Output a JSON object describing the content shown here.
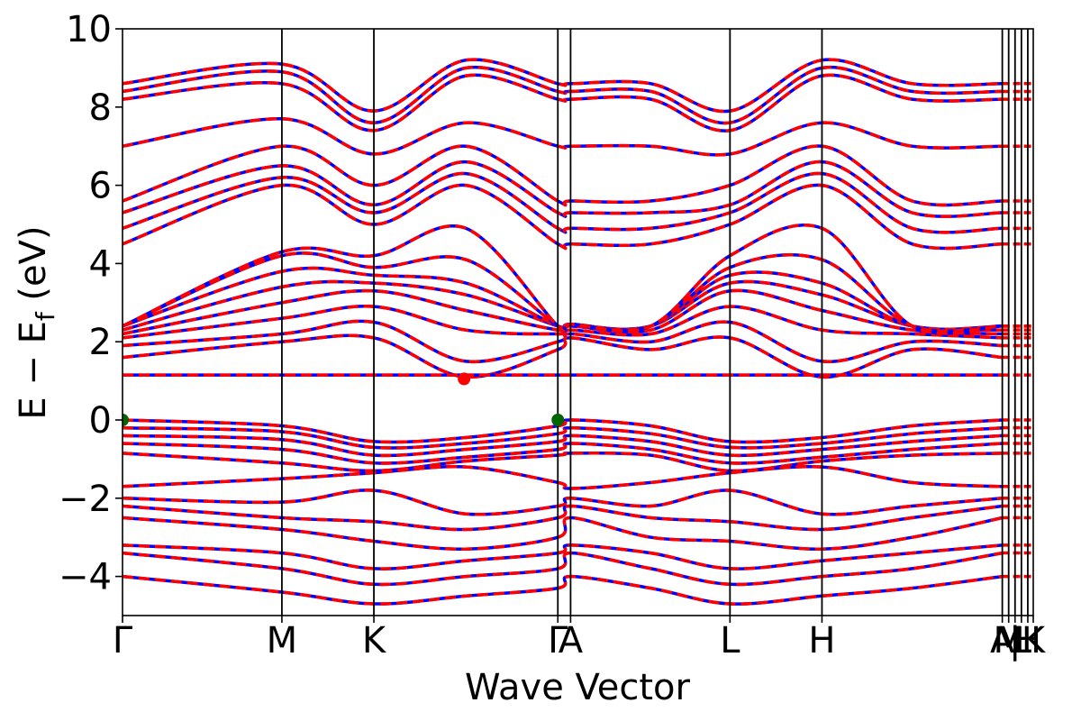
{
  "chart_data": {
    "type": "line",
    "title": "",
    "xlabel": "Wave Vector",
    "ylabel": "E − E",
    "ylabel_subscript": "f",
    "ylabel_unit": " (eV)",
    "ylim": [
      -5,
      10
    ],
    "y_ticks": [
      {
        "value": 10,
        "label": "10"
      },
      {
        "value": 8,
        "label": "8"
      },
      {
        "value": 6,
        "label": "6"
      },
      {
        "value": 4,
        "label": "4"
      },
      {
        "value": 2,
        "label": "2"
      },
      {
        "value": 0,
        "label": "0"
      },
      {
        "value": -2,
        "label": "−2"
      },
      {
        "value": -4,
        "label": "−4"
      }
    ],
    "xlim": [
      0,
      1
    ],
    "kpoints": [
      {
        "label": "Γ",
        "x": 0.0
      },
      {
        "label": "M",
        "x": 0.175
      },
      {
        "label": "K",
        "x": 0.276
      },
      {
        "label": "Γ",
        "x": 0.478
      },
      {
        "label": "A",
        "x": 0.492
      },
      {
        "label": "L",
        "x": 0.667
      },
      {
        "label": "H",
        "x": 0.768
      },
      {
        "label": "A",
        "x": 0.966
      },
      {
        "label": "M",
        "x": 0.973
      },
      {
        "label": "|",
        "x": 0.98
      },
      {
        "label": "L",
        "x": 0.987
      },
      {
        "label": "H",
        "x": 0.994
      },
      {
        "label": "K",
        "x": 1.0
      }
    ],
    "grid": false,
    "series": [
      {
        "style": "solid",
        "color": "#0000ff"
      },
      {
        "style": "dashed",
        "color": "#ff0000"
      }
    ],
    "markers": [
      {
        "x": 0.0,
        "y": 0.0,
        "color": "#006400"
      },
      {
        "x": 0.478,
        "y": 0.0,
        "color": "#006400"
      },
      {
        "x": 0.375,
        "y": 1.05,
        "color": "#ff0000"
      }
    ],
    "valence_bands": [
      [
        0.0,
        -0.15,
        -0.55,
        -0.45,
        -0.15,
        0.0,
        -0.15,
        -0.55,
        -0.45,
        -0.15,
        0.0
      ],
      [
        -0.2,
        -0.3,
        -0.7,
        -0.6,
        -0.35,
        -0.2,
        -0.35,
        -0.7,
        -0.6,
        -0.35,
        -0.2
      ],
      [
        -0.4,
        -0.5,
        -0.9,
        -0.75,
        -0.55,
        -0.4,
        -0.55,
        -0.9,
        -0.75,
        -0.55,
        -0.4
      ],
      [
        -0.6,
        -0.75,
        -1.1,
        -0.95,
        -0.75,
        -0.6,
        -0.75,
        -1.1,
        -0.95,
        -0.75,
        -0.6
      ],
      [
        -0.85,
        -1.1,
        -1.3,
        -1.05,
        -0.9,
        -0.85,
        -0.9,
        -1.3,
        -1.05,
        -0.9,
        -0.85
      ],
      [
        -1.7,
        -1.5,
        -1.35,
        -1.2,
        -1.6,
        -1.75,
        -1.6,
        -1.35,
        -1.2,
        -1.6,
        -1.7
      ],
      [
        -2.0,
        -2.1,
        -1.8,
        -2.4,
        -2.2,
        -2.0,
        -2.2,
        -1.8,
        -2.4,
        -2.2,
        -2.0
      ],
      [
        -2.2,
        -2.5,
        -2.6,
        -2.8,
        -2.5,
        -2.2,
        -2.5,
        -2.6,
        -2.8,
        -2.5,
        -2.2
      ],
      [
        -2.5,
        -2.8,
        -3.1,
        -3.3,
        -3.0,
        -2.5,
        -3.0,
        -3.1,
        -3.3,
        -3.0,
        -2.5
      ],
      [
        -3.2,
        -3.4,
        -3.8,
        -3.6,
        -3.4,
        -3.2,
        -3.4,
        -3.8,
        -3.6,
        -3.4,
        -3.2
      ],
      [
        -3.4,
        -3.8,
        -4.2,
        -4.0,
        -3.8,
        -3.4,
        -3.8,
        -4.2,
        -4.0,
        -3.8,
        -3.4
      ],
      [
        -4.0,
        -4.4,
        -4.7,
        -4.5,
        -4.3,
        -4.0,
        -4.3,
        -4.7,
        -4.5,
        -4.3,
        -4.0
      ]
    ],
    "flat_band": 1.15,
    "conduction_bands": [
      [
        1.6,
        2.0,
        2.1,
        1.1,
        1.8,
        2.1,
        1.8,
        2.1,
        1.1,
        1.8,
        1.6
      ],
      [
        1.9,
        2.2,
        2.5,
        1.5,
        2.0,
        2.2,
        2.0,
        2.5,
        1.5,
        2.0,
        1.9
      ],
      [
        2.1,
        2.6,
        2.9,
        2.3,
        2.2,
        2.3,
        2.2,
        2.9,
        2.3,
        2.2,
        2.1
      ],
      [
        2.2,
        3.0,
        3.3,
        2.8,
        2.3,
        2.4,
        2.3,
        3.3,
        2.8,
        2.3,
        2.2
      ],
      [
        2.3,
        3.4,
        3.5,
        3.2,
        2.4,
        2.4,
        2.4,
        3.5,
        3.2,
        2.4,
        2.3
      ],
      [
        2.4,
        3.8,
        3.7,
        3.5,
        2.4,
        2.45,
        2.4,
        3.7,
        3.5,
        2.4,
        2.4
      ],
      [
        2.4,
        4.2,
        3.9,
        4.1,
        2.4,
        2.45,
        2.4,
        3.9,
        4.1,
        2.4,
        2.4
      ],
      [
        2.4,
        4.3,
        4.2,
        4.9,
        2.4,
        2.45,
        2.4,
        4.2,
        4.9,
        2.4,
        2.4
      ],
      [
        4.5,
        6.0,
        5.0,
        6.0,
        4.5,
        4.5,
        4.5,
        5.0,
        6.0,
        4.5,
        4.5
      ],
      [
        4.9,
        6.2,
        5.3,
        6.3,
        4.9,
        4.9,
        4.9,
        5.3,
        6.3,
        4.9,
        4.9
      ],
      [
        5.3,
        6.5,
        5.5,
        6.6,
        5.3,
        5.3,
        5.3,
        5.5,
        6.6,
        5.3,
        5.3
      ],
      [
        5.6,
        7.0,
        6.0,
        7.0,
        5.6,
        5.6,
        5.6,
        6.0,
        7.0,
        5.6,
        5.6
      ],
      [
        7.0,
        7.7,
        6.8,
        7.6,
        7.0,
        7.0,
        7.0,
        6.8,
        7.6,
        7.0,
        7.0
      ],
      [
        8.2,
        8.6,
        7.4,
        8.8,
        8.2,
        8.2,
        8.2,
        7.4,
        8.8,
        8.2,
        8.2
      ],
      [
        8.4,
        8.9,
        7.6,
        9.0,
        8.4,
        8.4,
        8.4,
        7.6,
        9.0,
        8.4,
        8.4
      ],
      [
        8.6,
        9.1,
        7.9,
        9.2,
        8.6,
        8.6,
        8.6,
        7.9,
        9.2,
        8.6,
        8.6
      ]
    ]
  }
}
